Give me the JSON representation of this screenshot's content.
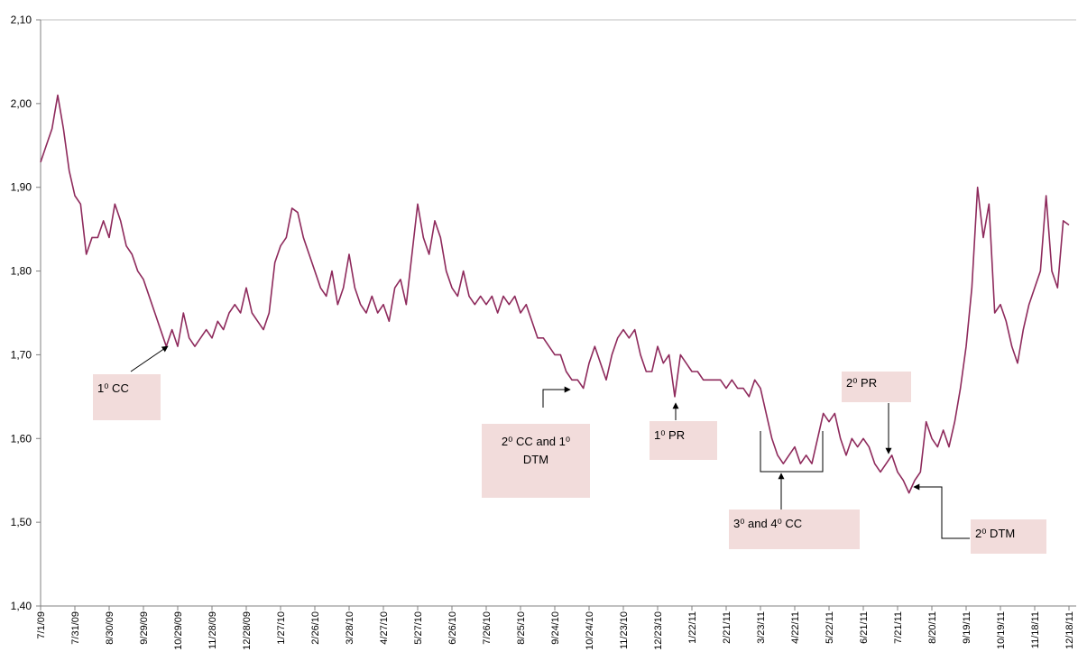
{
  "chart_data": {
    "type": "line",
    "color": "#8e2a5c",
    "grid": false,
    "ylim": [
      1.4,
      2.1
    ],
    "yticks": [
      {
        "value": 1.4,
        "label": "1,40"
      },
      {
        "value": 1.5,
        "label": "1,50"
      },
      {
        "value": 1.6,
        "label": "1,60"
      },
      {
        "value": 1.7,
        "label": "1,70"
      },
      {
        "value": 1.8,
        "label": "1,80"
      },
      {
        "value": 1.9,
        "label": "1,90"
      },
      {
        "value": 2.0,
        "label": "2,00"
      },
      {
        "value": 2.1,
        "label": "2,10"
      }
    ],
    "xlim": [
      "2009-07-01",
      "2011-12-18"
    ],
    "xticks": [
      {
        "value": "2009-07-01",
        "label": "7/1/09"
      },
      {
        "value": "2009-07-31",
        "label": "7/31/09"
      },
      {
        "value": "2009-08-30",
        "label": "8/30/09"
      },
      {
        "value": "2009-09-29",
        "label": "9/29/09"
      },
      {
        "value": "2009-10-29",
        "label": "10/29/09"
      },
      {
        "value": "2009-11-28",
        "label": "11/28/09"
      },
      {
        "value": "2009-12-28",
        "label": "12/28/09"
      },
      {
        "value": "2010-01-27",
        "label": "1/27/10"
      },
      {
        "value": "2010-02-26",
        "label": "2/26/10"
      },
      {
        "value": "2010-03-28",
        "label": "3/28/10"
      },
      {
        "value": "2010-04-27",
        "label": "4/27/10"
      },
      {
        "value": "2010-05-27",
        "label": "5/27/10"
      },
      {
        "value": "2010-06-26",
        "label": "6/26/10"
      },
      {
        "value": "2010-07-26",
        "label": "7/26/10"
      },
      {
        "value": "2010-08-25",
        "label": "8/25/10"
      },
      {
        "value": "2010-09-24",
        "label": "9/24/10"
      },
      {
        "value": "2010-10-24",
        "label": "10/24/10"
      },
      {
        "value": "2010-11-23",
        "label": "11/23/10"
      },
      {
        "value": "2010-12-23",
        "label": "12/23/10"
      },
      {
        "value": "2011-01-22",
        "label": "1/22/11"
      },
      {
        "value": "2011-02-21",
        "label": "2/21/11"
      },
      {
        "value": "2011-03-23",
        "label": "3/23/11"
      },
      {
        "value": "2011-04-22",
        "label": "4/22/11"
      },
      {
        "value": "2011-05-22",
        "label": "5/22/11"
      },
      {
        "value": "2011-06-21",
        "label": "6/21/11"
      },
      {
        "value": "2011-07-21",
        "label": "7/21/11"
      },
      {
        "value": "2011-08-20",
        "label": "8/20/11"
      },
      {
        "value": "2011-09-19",
        "label": "9/19/11"
      },
      {
        "value": "2011-10-19",
        "label": "10/19/11"
      },
      {
        "value": "2011-11-18",
        "label": "11/18/11"
      },
      {
        "value": "2011-12-18",
        "label": "12/18/11"
      }
    ],
    "x": [
      "2009-07-01",
      "2009-07-06",
      "2009-07-11",
      "2009-07-16",
      "2009-07-21",
      "2009-07-26",
      "2009-07-31",
      "2009-08-05",
      "2009-08-10",
      "2009-08-15",
      "2009-08-20",
      "2009-08-25",
      "2009-08-30",
      "2009-09-04",
      "2009-09-09",
      "2009-09-14",
      "2009-09-19",
      "2009-09-24",
      "2009-09-29",
      "2009-10-04",
      "2009-10-09",
      "2009-10-14",
      "2009-10-19",
      "2009-10-24",
      "2009-10-29",
      "2009-11-03",
      "2009-11-08",
      "2009-11-13",
      "2009-11-18",
      "2009-11-23",
      "2009-11-28",
      "2009-12-03",
      "2009-12-08",
      "2009-12-13",
      "2009-12-18",
      "2009-12-23",
      "2009-12-28",
      "2010-01-02",
      "2010-01-07",
      "2010-01-12",
      "2010-01-17",
      "2010-01-22",
      "2010-01-27",
      "2010-02-01",
      "2010-02-06",
      "2010-02-11",
      "2010-02-16",
      "2010-02-21",
      "2010-02-26",
      "2010-03-03",
      "2010-03-08",
      "2010-03-13",
      "2010-03-18",
      "2010-03-23",
      "2010-03-28",
      "2010-04-02",
      "2010-04-07",
      "2010-04-12",
      "2010-04-17",
      "2010-04-22",
      "2010-04-27",
      "2010-05-02",
      "2010-05-07",
      "2010-05-12",
      "2010-05-17",
      "2010-05-22",
      "2010-05-27",
      "2010-06-01",
      "2010-06-06",
      "2010-06-11",
      "2010-06-16",
      "2010-06-21",
      "2010-06-26",
      "2010-07-01",
      "2010-07-06",
      "2010-07-11",
      "2010-07-16",
      "2010-07-21",
      "2010-07-26",
      "2010-07-31",
      "2010-08-05",
      "2010-08-10",
      "2010-08-15",
      "2010-08-20",
      "2010-08-25",
      "2010-08-30",
      "2010-09-04",
      "2010-09-09",
      "2010-09-14",
      "2010-09-19",
      "2010-09-24",
      "2010-09-29",
      "2010-10-04",
      "2010-10-09",
      "2010-10-14",
      "2010-10-19",
      "2010-10-24",
      "2010-10-29",
      "2010-11-03",
      "2010-11-08",
      "2010-11-13",
      "2010-11-18",
      "2010-11-23",
      "2010-11-28",
      "2010-12-03",
      "2010-12-08",
      "2010-12-13",
      "2010-12-18",
      "2010-12-23",
      "2010-12-28",
      "2011-01-02",
      "2011-01-07",
      "2011-01-12",
      "2011-01-17",
      "2011-01-22",
      "2011-01-27",
      "2011-02-01",
      "2011-02-06",
      "2011-02-11",
      "2011-02-16",
      "2011-02-21",
      "2011-02-26",
      "2011-03-03",
      "2011-03-08",
      "2011-03-13",
      "2011-03-18",
      "2011-03-23",
      "2011-03-28",
      "2011-04-02",
      "2011-04-07",
      "2011-04-12",
      "2011-04-17",
      "2011-04-22",
      "2011-04-27",
      "2011-05-02",
      "2011-05-07",
      "2011-05-12",
      "2011-05-17",
      "2011-05-22",
      "2011-05-27",
      "2011-06-01",
      "2011-06-06",
      "2011-06-11",
      "2011-06-16",
      "2011-06-21",
      "2011-06-26",
      "2011-07-01",
      "2011-07-06",
      "2011-07-11",
      "2011-07-16",
      "2011-07-21",
      "2011-07-26",
      "2011-07-31",
      "2011-08-05",
      "2011-08-10",
      "2011-08-15",
      "2011-08-20",
      "2011-08-25",
      "2011-08-30",
      "2011-09-04",
      "2011-09-09",
      "2011-09-14",
      "2011-09-19",
      "2011-09-24",
      "2011-09-29",
      "2011-10-04",
      "2011-10-09",
      "2011-10-14",
      "2011-10-19",
      "2011-10-24",
      "2011-10-29",
      "2011-11-03",
      "2011-11-08",
      "2011-11-13",
      "2011-11-18",
      "2011-11-23",
      "2011-11-28",
      "2011-12-03",
      "2011-12-08",
      "2011-12-13",
      "2011-12-18"
    ],
    "values": [
      1.93,
      1.95,
      1.97,
      2.01,
      1.97,
      1.92,
      1.89,
      1.88,
      1.82,
      1.84,
      1.84,
      1.86,
      1.84,
      1.88,
      1.86,
      1.83,
      1.82,
      1.8,
      1.79,
      1.77,
      1.75,
      1.73,
      1.71,
      1.73,
      1.71,
      1.75,
      1.72,
      1.71,
      1.72,
      1.73,
      1.72,
      1.74,
      1.73,
      1.75,
      1.76,
      1.75,
      1.78,
      1.75,
      1.74,
      1.73,
      1.75,
      1.81,
      1.83,
      1.84,
      1.875,
      1.87,
      1.84,
      1.82,
      1.8,
      1.78,
      1.77,
      1.8,
      1.76,
      1.78,
      1.82,
      1.78,
      1.76,
      1.75,
      1.77,
      1.75,
      1.76,
      1.74,
      1.78,
      1.79,
      1.76,
      1.82,
      1.88,
      1.84,
      1.82,
      1.86,
      1.84,
      1.8,
      1.78,
      1.77,
      1.8,
      1.77,
      1.76,
      1.77,
      1.76,
      1.77,
      1.75,
      1.77,
      1.76,
      1.77,
      1.75,
      1.76,
      1.74,
      1.72,
      1.72,
      1.71,
      1.7,
      1.7,
      1.68,
      1.67,
      1.67,
      1.66,
      1.69,
      1.71,
      1.69,
      1.67,
      1.7,
      1.72,
      1.73,
      1.72,
      1.73,
      1.7,
      1.68,
      1.68,
      1.71,
      1.69,
      1.7,
      1.65,
      1.7,
      1.69,
      1.68,
      1.68,
      1.67,
      1.67,
      1.67,
      1.67,
      1.66,
      1.67,
      1.66,
      1.66,
      1.65,
      1.67,
      1.66,
      1.63,
      1.6,
      1.58,
      1.57,
      1.58,
      1.59,
      1.57,
      1.58,
      1.57,
      1.6,
      1.63,
      1.62,
      1.63,
      1.6,
      1.58,
      1.6,
      1.59,
      1.6,
      1.59,
      1.57,
      1.56,
      1.57,
      1.58,
      1.56,
      1.55,
      1.535,
      1.55,
      1.56,
      1.62,
      1.6,
      1.59,
      1.61,
      1.59,
      1.62,
      1.66,
      1.71,
      1.78,
      1.9,
      1.84,
      1.88,
      1.75,
      1.76,
      1.74,
      1.71,
      1.69,
      1.73,
      1.76,
      1.78,
      1.8,
      1.89,
      1.8,
      1.78,
      1.86,
      1.855
    ],
    "annotations": [
      "1⁰ CC",
      "2⁰ CC and 1⁰ DTM",
      "1⁰ PR",
      "3⁰ and 4⁰ CC",
      "2⁰ PR",
      "2⁰ DTM"
    ]
  }
}
